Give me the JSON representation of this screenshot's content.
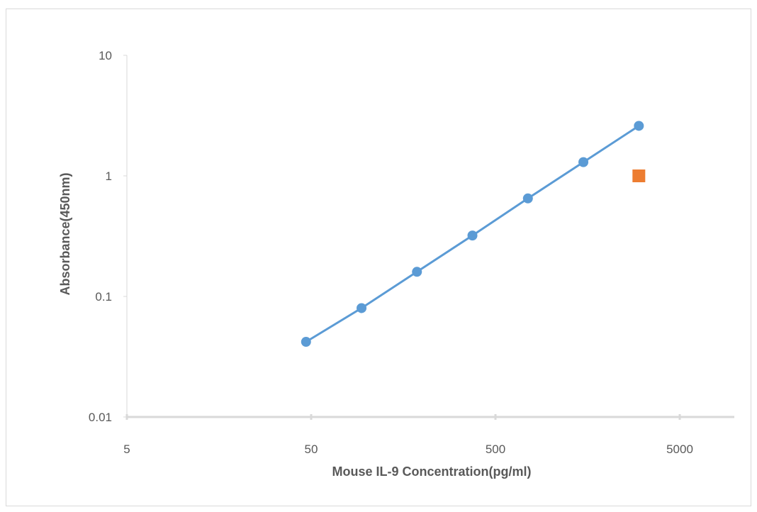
{
  "chart_data": {
    "type": "scatter",
    "title": "",
    "xlabel": "Mouse IL-9 Concentration(pg/ml)",
    "ylabel": "Absorbance(450nm)",
    "x_scale": "log",
    "y_scale": "log",
    "xlim": [
      5,
      10000
    ],
    "ylim": [
      0.01,
      10
    ],
    "x_ticks": [
      5,
      50,
      500,
      5000
    ],
    "x_tick_labels": [
      "5",
      "50",
      "500",
      "5000"
    ],
    "y_ticks": [
      0.01,
      0.1,
      1,
      10
    ],
    "y_tick_labels": [
      "0.01",
      "0.1",
      "1",
      "10"
    ],
    "grid": false,
    "legend": "none",
    "series": [
      {
        "style": "line-with-markers",
        "marker": "circle",
        "color": "#5b9bd5",
        "x": [
          46.9,
          93.8,
          187.5,
          375,
          750,
          1500,
          3000
        ],
        "y": [
          0.042,
          0.08,
          0.16,
          0.32,
          0.65,
          1.3,
          2.6
        ]
      },
      {
        "style": "markers-only",
        "marker": "square",
        "color": "#ed7d31",
        "x": [
          3000
        ],
        "y": [
          1.0
        ]
      }
    ]
  }
}
